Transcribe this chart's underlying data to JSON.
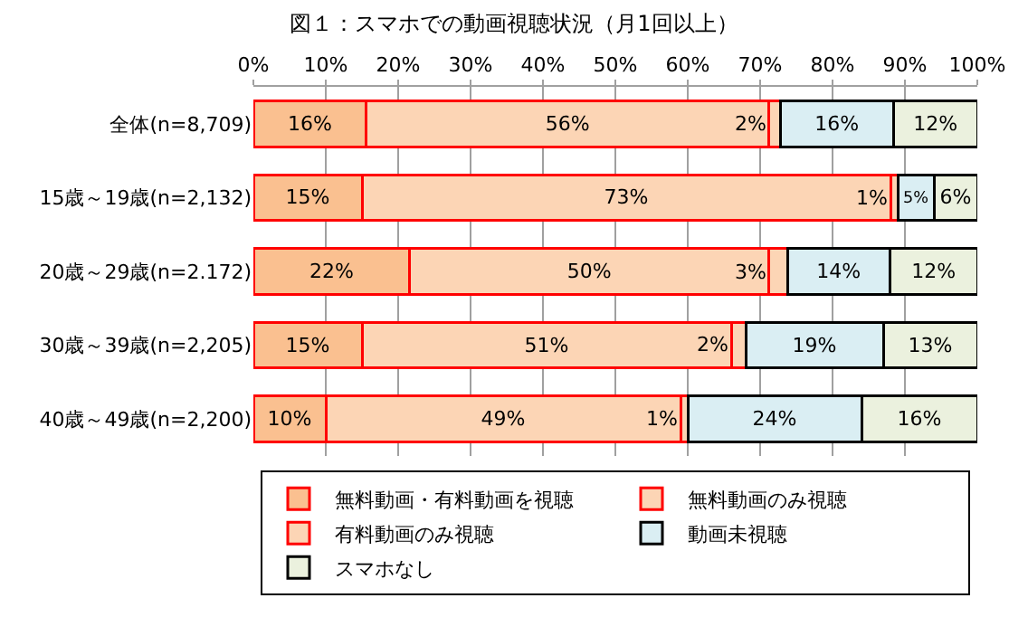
{
  "chart_data": {
    "type": "bar",
    "orientation": "horizontal",
    "stacked": true,
    "title": "図１：スマホでの動画視聴状況（月1回以上）",
    "categories": [
      "全体(n=8,709)",
      "15歳～19歳(n=2,132)",
      "20歳～29歳(n=2.172)",
      "30歳～39歳(n=2,205)",
      "40歳～49歳(n=2,200)"
    ],
    "series": [
      {
        "name": "無料動画・有料動画を視聴",
        "color": "#fac090",
        "values": [
          15.6,
          15,
          21.6,
          15,
          10
        ],
        "value_labels": [
          "16%",
          "15%",
          "22%",
          "15%",
          "10%"
        ]
      },
      {
        "name": "無料動画のみ視聴",
        "color": "#fcd5b5",
        "values": [
          55.6,
          73,
          49.6,
          51,
          49
        ],
        "value_labels": [
          "56%",
          "73%",
          "50%",
          "51%",
          "49%"
        ]
      },
      {
        "name": "有料動画のみ視聴",
        "color": "#fcd5b5",
        "values": [
          1.6,
          1,
          2.6,
          2,
          1
        ],
        "value_labels": [
          "2%",
          "1%",
          "3%",
          "2%",
          "1%"
        ]
      },
      {
        "name": "動画未視聴",
        "color": "#daeef3",
        "values": [
          15.6,
          5,
          14.1,
          19,
          24
        ],
        "value_labels": [
          "16%",
          "5%",
          "14%",
          "19%",
          "24%"
        ]
      },
      {
        "name": "スマホなし",
        "color": "#ebf1de",
        "values": [
          11.6,
          6,
          12.1,
          13,
          16
        ],
        "value_labels": [
          "12%",
          "6%",
          "12%",
          "13%",
          "16%"
        ]
      }
    ],
    "xlim": [
      0,
      100
    ],
    "xticks": [
      {
        "value": 0,
        "label": "0%"
      },
      {
        "value": 10,
        "label": "10%"
      },
      {
        "value": 20,
        "label": "20%"
      },
      {
        "value": 30,
        "label": "30%"
      },
      {
        "value": 40,
        "label": "40%"
      },
      {
        "value": 50,
        "label": "50%"
      },
      {
        "value": 60,
        "label": "60%"
      },
      {
        "value": 70,
        "label": "70%"
      },
      {
        "value": 80,
        "label": "80%"
      },
      {
        "value": 90,
        "label": "90%"
      },
      {
        "value": 100,
        "label": "100%"
      }
    ],
    "grid": "x",
    "legend": "bottom"
  }
}
